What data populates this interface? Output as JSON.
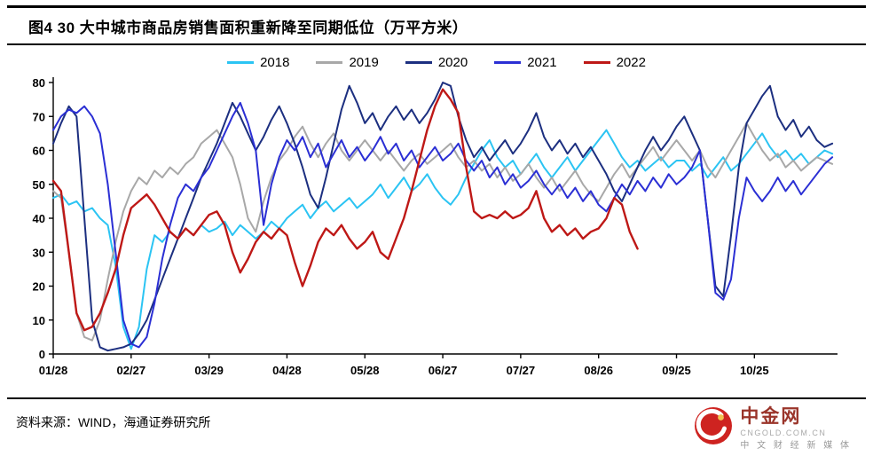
{
  "header": {
    "title": "图4  30 大中城市商品房销售面积重新降至同期低位（万平方米）"
  },
  "footer": {
    "source": "资料来源：WIND，海通证券研究所"
  },
  "logo": {
    "name": "中金网",
    "domain": "CNGOLD.COM.CN",
    "tagline": "中 文 财 经 新 媒 体"
  },
  "chart_data": {
    "type": "line",
    "title": "30 大中城市商品房销售面积重新降至同期低位",
    "unit": "万平方米",
    "y_min": 0,
    "y_max": 80,
    "y_ticks": [
      0,
      10,
      20,
      30,
      40,
      50,
      60,
      70,
      80
    ],
    "x_domain": [
      0,
      302
    ],
    "x_ticks": [
      {
        "day": 0,
        "label": "01/28"
      },
      {
        "day": 30,
        "label": "02/27"
      },
      {
        "day": 60,
        "label": "03/29"
      },
      {
        "day": 90,
        "label": "04/28"
      },
      {
        "day": 120,
        "label": "05/28"
      },
      {
        "day": 150,
        "label": "06/27"
      },
      {
        "day": 180,
        "label": "07/27"
      },
      {
        "day": 210,
        "label": "08/26"
      },
      {
        "day": 240,
        "label": "09/25"
      },
      {
        "day": 270,
        "label": "10/25"
      }
    ],
    "grid": false,
    "legend_position": "top-center",
    "series": [
      {
        "name": "2018",
        "color": "#2BC4F3",
        "stroke_width": 2,
        "start_day": 0,
        "step_days": 3,
        "values": [
          46,
          47,
          44,
          45,
          42,
          43,
          40,
          38,
          26,
          8,
          1.5,
          8,
          25,
          35,
          33,
          36,
          34,
          37,
          35,
          38,
          36,
          37,
          39,
          35,
          38,
          36,
          34,
          36,
          39,
          37,
          40,
          42,
          44,
          40,
          43,
          45,
          42,
          44,
          46,
          43,
          45,
          47,
          50,
          46,
          49,
          52,
          48,
          50,
          53,
          49,
          46,
          44,
          47,
          52,
          56,
          60,
          63,
          58,
          55,
          57,
          53,
          56,
          59,
          55,
          52,
          55,
          58,
          54,
          57,
          60,
          63,
          66,
          62,
          58,
          55,
          57,
          54,
          56,
          58,
          55,
          57,
          57,
          54,
          56,
          52,
          55,
          58,
          54,
          56,
          59,
          62,
          65,
          61,
          58,
          60,
          57,
          59,
          56,
          58,
          60,
          59
        ]
      },
      {
        "name": "2019",
        "color": "#A8A8A8",
        "stroke_width": 2,
        "start_day": 0,
        "step_days": 3,
        "values": [
          48,
          46,
          30,
          12,
          5,
          4,
          10,
          22,
          33,
          42,
          48,
          52,
          50,
          54,
          52,
          55,
          53,
          56,
          58,
          62,
          64,
          66,
          62,
          58,
          50,
          40,
          36,
          45,
          52,
          57,
          60,
          64,
          67,
          62,
          58,
          62,
          65,
          60,
          57,
          60,
          63,
          60,
          57,
          60,
          57,
          54,
          57,
          59,
          56,
          58,
          60,
          62,
          58,
          55,
          57,
          54,
          56,
          52,
          55,
          51,
          53,
          56,
          52,
          49,
          52,
          48,
          51,
          54,
          50,
          47,
          45,
          49,
          53,
          56,
          52,
          55,
          58,
          61,
          57,
          60,
          63,
          60,
          57,
          60,
          55,
          52,
          56,
          60,
          64,
          68,
          64,
          60,
          57,
          59,
          55,
          57,
          54,
          56,
          58,
          57,
          56
        ]
      },
      {
        "name": "2020",
        "color": "#1C2F80",
        "stroke_width": 2,
        "start_day": 0,
        "step_days": 3,
        "values": [
          62,
          68,
          73,
          70,
          40,
          10,
          2,
          1,
          1.5,
          2,
          3,
          6,
          10,
          16,
          22,
          28,
          34,
          40,
          46,
          52,
          57,
          62,
          68,
          74,
          70,
          65,
          60,
          64,
          69,
          73,
          68,
          62,
          55,
          47,
          43,
          52,
          62,
          72,
          79,
          74,
          68,
          71,
          66,
          70,
          73,
          69,
          72,
          68,
          71,
          75,
          80,
          79,
          70,
          63,
          58,
          61,
          57,
          60,
          63,
          59,
          62,
          66,
          71,
          64,
          60,
          63,
          59,
          62,
          58,
          61,
          57,
          53,
          48,
          45,
          50,
          55,
          60,
          64,
          60,
          63,
          67,
          70,
          65,
          60,
          40,
          20,
          17,
          35,
          55,
          68,
          72,
          76,
          79,
          70,
          66,
          69,
          64,
          67,
          63,
          61,
          62
        ]
      },
      {
        "name": "2021",
        "color": "#2B2FD4",
        "stroke_width": 2,
        "start_day": 0,
        "step_days": 3,
        "values": [
          66,
          70,
          72,
          71,
          73,
          70,
          65,
          50,
          30,
          10,
          3,
          2,
          5,
          15,
          28,
          38,
          46,
          50,
          48,
          52,
          55,
          60,
          65,
          70,
          74,
          68,
          60,
          38,
          50,
          58,
          63,
          60,
          64,
          58,
          62,
          55,
          59,
          63,
          58,
          61,
          57,
          60,
          64,
          59,
          62,
          57,
          60,
          55,
          58,
          61,
          57,
          59,
          62,
          57,
          54,
          57,
          52,
          55,
          50,
          53,
          49,
          51,
          54,
          50,
          47,
          50,
          46,
          49,
          45,
          48,
          44,
          42,
          46,
          50,
          47,
          51,
          48,
          52,
          49,
          53,
          50,
          52,
          55,
          60,
          40,
          18,
          16,
          22,
          40,
          52,
          48,
          45,
          48,
          52,
          48,
          51,
          47,
          50,
          53,
          56,
          58
        ]
      },
      {
        "name": "2022",
        "color": "#BE1816",
        "stroke_width": 2.4,
        "start_day": 0,
        "step_days": 3,
        "values": [
          51,
          48,
          30,
          12,
          7,
          8,
          12,
          18,
          25,
          35,
          43,
          45,
          47,
          44,
          40,
          36,
          34,
          37,
          35,
          38,
          41,
          42,
          38,
          30,
          24,
          28,
          33,
          36,
          34,
          37,
          35,
          27,
          20,
          26,
          33,
          37,
          35,
          38,
          34,
          31,
          33,
          36,
          30,
          28,
          34,
          40,
          48,
          57,
          66,
          73,
          78,
          75,
          71,
          55,
          42,
          40,
          41,
          40,
          42,
          40,
          41,
          43,
          48,
          40,
          36,
          38,
          35,
          37,
          34,
          36,
          37,
          40,
          46,
          44,
          36,
          31
        ]
      }
    ]
  }
}
